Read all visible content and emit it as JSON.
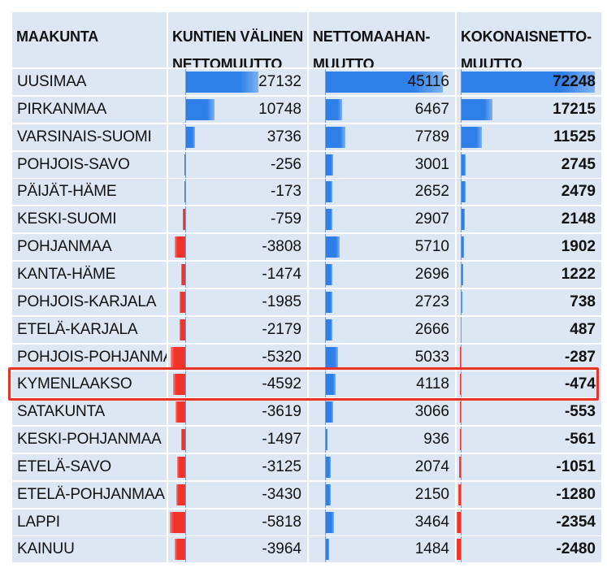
{
  "headers": {
    "region": "MAAKUNTA",
    "municipal": [
      "KUNTIEN VÄLINEN",
      "NETTOMUUTTO"
    ],
    "immigration": [
      "NETTOMAAHAN-",
      "MUUTTO"
    ],
    "total": [
      "KOKONAISNETTO-",
      "MUUTTO"
    ]
  },
  "colors": {
    "positive": "#2f7fe8",
    "negative": "#f2332a",
    "cell_bg": "#dde7f3",
    "highlight": "#e8332a"
  },
  "highlight_row": "KYMENLAAKSO",
  "chart_data": {
    "type": "table",
    "columns": [
      "MAAKUNTA",
      "KUNTIEN VÄLINEN NETTOMUUTTO",
      "NETTOMAAHANMUUTTO",
      "KOKONAISNETTOMUUTTO"
    ],
    "rows": [
      {
        "region": "UUSIMAA",
        "municipal": 27132,
        "immigration": 45116,
        "total": 72248
      },
      {
        "region": "PIRKANMAA",
        "municipal": 10748,
        "immigration": 6467,
        "total": 17215
      },
      {
        "region": "VARSINAIS-SUOMI",
        "municipal": 3736,
        "immigration": 7789,
        "total": 11525
      },
      {
        "region": "POHJOIS-SAVO",
        "municipal": -256,
        "immigration": 3001,
        "total": 2745
      },
      {
        "region": "PÄIJÄT-HÄME",
        "municipal": -173,
        "immigration": 2652,
        "total": 2479
      },
      {
        "region": "KESKI-SUOMI",
        "municipal": -759,
        "immigration": 2907,
        "total": 2148
      },
      {
        "region": "POHJANMAA",
        "municipal": -3808,
        "immigration": 5710,
        "total": 1902
      },
      {
        "region": "KANTA-HÄME",
        "municipal": -1474,
        "immigration": 2696,
        "total": 1222
      },
      {
        "region": "POHJOIS-KARJALA",
        "municipal": -1985,
        "immigration": 2723,
        "total": 738
      },
      {
        "region": "ETELÄ-KARJALA",
        "municipal": -2179,
        "immigration": 2666,
        "total": 487
      },
      {
        "region": "POHJOIS-POHJANMAA",
        "municipal": -5320,
        "immigration": 5033,
        "total": -287
      },
      {
        "region": "KYMENLAAKSO",
        "municipal": -4592,
        "immigration": 4118,
        "total": -474
      },
      {
        "region": "SATAKUNTA",
        "municipal": -3619,
        "immigration": 3066,
        "total": -553
      },
      {
        "region": "KESKI-POHJANMAA",
        "municipal": -1497,
        "immigration": 936,
        "total": -561
      },
      {
        "region": "ETELÄ-SAVO",
        "municipal": -3125,
        "immigration": 2074,
        "total": -1051
      },
      {
        "region": "ETELÄ-POHJANMAA",
        "municipal": -3430,
        "immigration": 2150,
        "total": -1280
      },
      {
        "region": "LAPPI",
        "municipal": -5818,
        "immigration": 3464,
        "total": -2354
      },
      {
        "region": "KAINUU",
        "municipal": -3964,
        "immigration": 1484,
        "total": -2480
      }
    ]
  }
}
